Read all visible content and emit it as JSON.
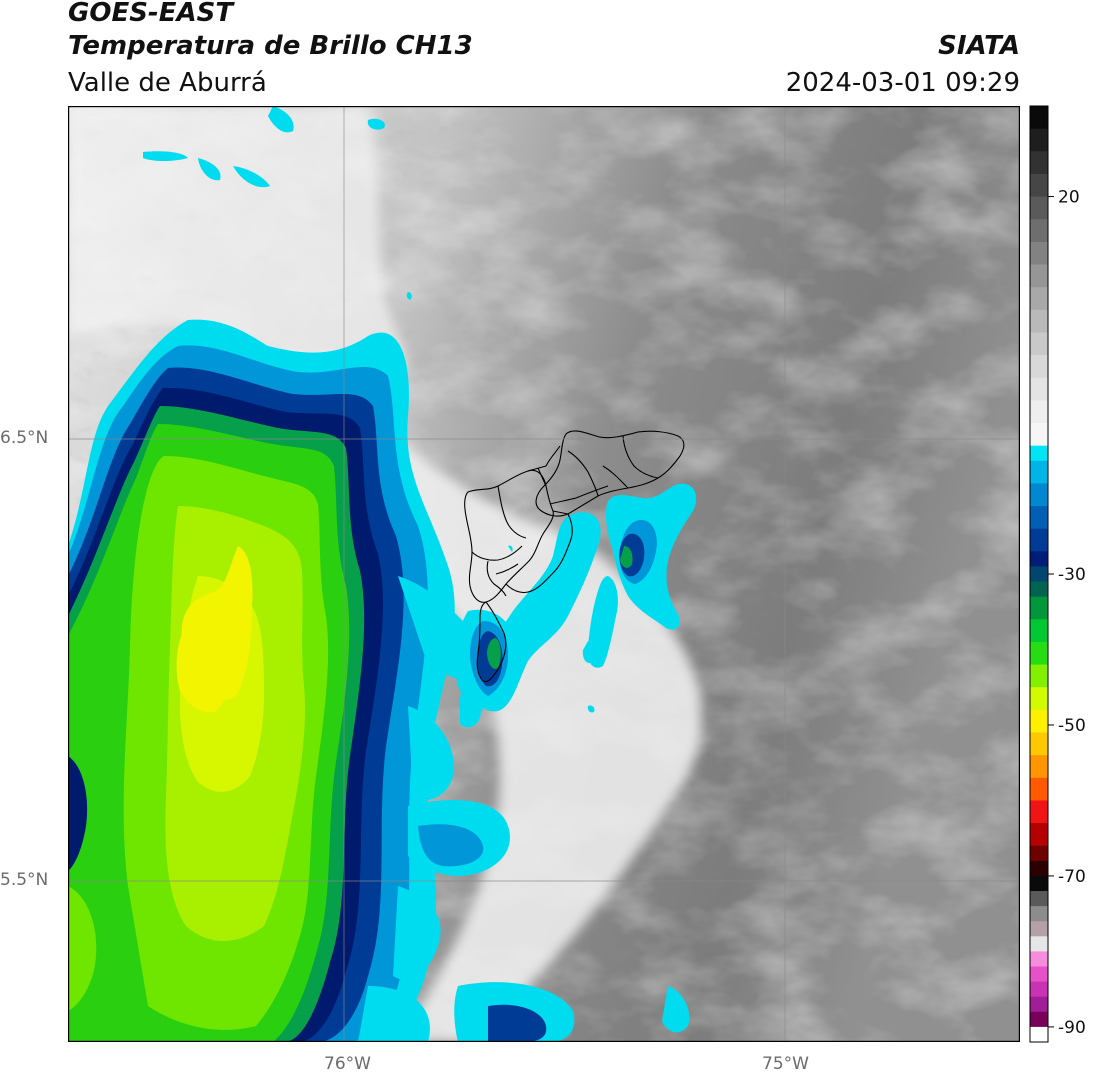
{
  "header": {
    "satellite": "GOES-EAST",
    "product": "Temperatura de Brillo CH13",
    "region": "Valle de Aburrá",
    "agency": "SIATA",
    "datetime": "2024-03-01 09:29"
  },
  "map": {
    "lon_labels": [
      "76°W",
      "75°W"
    ],
    "lat_labels": [
      "6.5°N",
      "5.5°N"
    ],
    "gridlines": true
  },
  "colorbar": {
    "tick_labels": [
      "20",
      "-30",
      "-50",
      "-70",
      "-90"
    ],
    "ticks": [
      20,
      -30,
      -50,
      -70,
      -90
    ],
    "range": [
      -92,
      32
    ],
    "segments": [
      {
        "from": 32,
        "to": 29,
        "color": "#0a0a0a"
      },
      {
        "from": 29,
        "to": 26,
        "color": "#1e1e1e"
      },
      {
        "from": 26,
        "to": 23,
        "color": "#323232"
      },
      {
        "from": 23,
        "to": 20,
        "color": "#464646"
      },
      {
        "from": 20,
        "to": 17,
        "color": "#5a5a5a"
      },
      {
        "from": 17,
        "to": 14,
        "color": "#6e6e6e"
      },
      {
        "from": 14,
        "to": 11,
        "color": "#828282"
      },
      {
        "from": 11,
        "to": 8,
        "color": "#969696"
      },
      {
        "from": 8,
        "to": 5,
        "color": "#a8a8a8"
      },
      {
        "from": 5,
        "to": 2,
        "color": "#b9b9b9"
      },
      {
        "from": 2,
        "to": -1,
        "color": "#c9c9c9"
      },
      {
        "from": -1,
        "to": -4,
        "color": "#d8d8d8"
      },
      {
        "from": -4,
        "to": -7,
        "color": "#e4e4e4"
      },
      {
        "from": -7,
        "to": -10,
        "color": "#eeeeee"
      },
      {
        "from": -10,
        "to": -13,
        "color": "#f6f6f6"
      },
      {
        "from": -13,
        "to": -15,
        "color": "#00e5f5"
      },
      {
        "from": -15,
        "to": -18,
        "color": "#00b4e6"
      },
      {
        "from": -18,
        "to": -21,
        "color": "#0087d2"
      },
      {
        "from": -21,
        "to": -24,
        "color": "#005fb4"
      },
      {
        "from": -24,
        "to": -27,
        "color": "#003c96"
      },
      {
        "from": -27,
        "to": -29,
        "color": "#001e78"
      },
      {
        "from": -29,
        "to": -31,
        "color": "#00466e"
      },
      {
        "from": -31,
        "to": -33,
        "color": "#006450"
      },
      {
        "from": -33,
        "to": -36,
        "color": "#00963c"
      },
      {
        "from": -36,
        "to": -39,
        "color": "#00c832"
      },
      {
        "from": -39,
        "to": -42,
        "color": "#28dc14"
      },
      {
        "from": -42,
        "to": -45,
        "color": "#82f000"
      },
      {
        "from": -45,
        "to": -48,
        "color": "#d2fa00"
      },
      {
        "from": -48,
        "to": -51,
        "color": "#fff000"
      },
      {
        "from": -51,
        "to": -54,
        "color": "#ffc800"
      },
      {
        "from": -54,
        "to": -57,
        "color": "#ff9600"
      },
      {
        "from": -57,
        "to": -60,
        "color": "#ff5a00"
      },
      {
        "from": -60,
        "to": -63,
        "color": "#f01414"
      },
      {
        "from": -63,
        "to": -66,
        "color": "#b40000"
      },
      {
        "from": -66,
        "to": -68,
        "color": "#6e0000"
      },
      {
        "from": -68,
        "to": -70,
        "color": "#2a0000"
      },
      {
        "from": -70,
        "to": -72,
        "color": "#0a0a0a"
      },
      {
        "from": -72,
        "to": -74,
        "color": "#5a5a5a"
      },
      {
        "from": -74,
        "to": -76,
        "color": "#8c8c8c"
      },
      {
        "from": -76,
        "to": -78,
        "color": "#b4a0a8"
      },
      {
        "from": -78,
        "to": -80,
        "color": "#e6e6e6"
      },
      {
        "from": -80,
        "to": -82,
        "color": "#f58cdc"
      },
      {
        "from": -82,
        "to": -84,
        "color": "#e650c8"
      },
      {
        "from": -84,
        "to": -86,
        "color": "#c832b4"
      },
      {
        "from": -86,
        "to": -88,
        "color": "#a01e96"
      },
      {
        "from": -88,
        "to": -90,
        "color": "#78005a"
      },
      {
        "from": -90,
        "to": -92,
        "color": "#ffffff"
      }
    ]
  },
  "colors": {
    "cloud_cyan": "#00e0f0",
    "cloud_blue": "#0a3b9e",
    "cloud_navy": "#001a6e",
    "cloud_green": "#2ad010",
    "cloud_lime": "#9aee00",
    "cloud_yellow": "#f2f400",
    "boundary": "#000000",
    "grid": "#8a8a8a"
  }
}
